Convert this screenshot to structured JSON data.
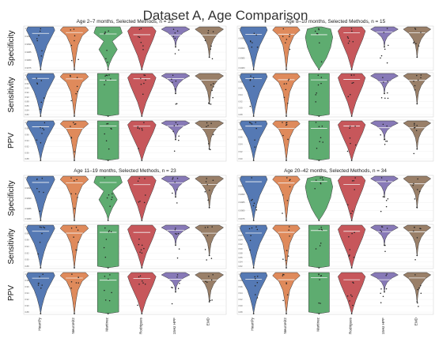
{
  "title": "Dataset A, Age Comparison",
  "chart_data": {
    "type": "violin",
    "title": "Dataset A, Age Comparison",
    "methods": [
      "HeartPy",
      "NeuroKit2",
      "Martinez",
      "Rodrigues",
      "15Hz HPF",
      "EMD"
    ],
    "method_colors": [
      "#4c72b0",
      "#dd8452",
      "#55a868",
      "#c44e52",
      "#8172b3",
      "#937860"
    ],
    "metrics": [
      "Specificity",
      "Sensitivity",
      "PPV"
    ],
    "age_groups": [
      {
        "title": "Age 2–7 months, Selected Methods, n = 25",
        "ticks": {
          "Specificity": [
            "1.0000",
            "0.9995",
            "0.9990",
            "0.9985",
            "0.9980",
            "0.9975"
          ],
          "Sensitivity": [
            "1.00",
            "0.98",
            "0.96",
            "0.94",
            "0.92",
            "0.90",
            "0.88",
            "0.86",
            "0.84",
            "0.82"
          ],
          "PPV": [
            "1.00",
            "0.98",
            "0.96",
            "0.94",
            "0.92",
            "0.90",
            "0.88"
          ]
        }
      },
      {
        "title": "Age 8–10 months, Selected Methods, n = 15",
        "ticks": {
          "Specificity": [
            "1.0000",
            "0.9995",
            "0.9990",
            "0.9985",
            "0.9980"
          ],
          "Sensitivity": [
            "1.00",
            "0.98",
            "0.96",
            "0.94",
            "0.92",
            "0.90",
            "0.88"
          ],
          "PPV": [
            "1.00",
            "0.98",
            "0.96",
            "0.94",
            "0.92",
            "0.90"
          ]
        }
      },
      {
        "title": "Age 11–19 months, Selected Methods, n = 23",
        "ticks": {
          "Specificity": [
            "1.0000",
            "0.9995",
            "0.9990",
            "0.9985",
            "0.9980"
          ],
          "Sensitivity": [
            "1.00",
            "0.98",
            "0.96",
            "0.94",
            "0.92",
            "0.90",
            "0.88"
          ],
          "PPV": [
            "1.00",
            "0.98",
            "0.96",
            "0.94",
            "0.92",
            "0.90",
            "0.88"
          ]
        }
      },
      {
        "title": "Age 20–42 months, Selected Methods, n = 34",
        "ticks": {
          "Specificity": [
            "1.0000",
            "0.9995",
            "0.9990",
            "0.9985",
            "0.9980",
            "0.9975"
          ],
          "Sensitivity": [
            "1.00",
            "0.98",
            "0.96",
            "0.94",
            "0.92",
            "0.90",
            "0.88",
            "0.86",
            "0.84",
            "0.82"
          ],
          "PPV": [
            "1.00",
            "0.98",
            "0.96",
            "0.94",
            "0.92",
            "0.90",
            "0.88"
          ]
        }
      }
    ]
  }
}
